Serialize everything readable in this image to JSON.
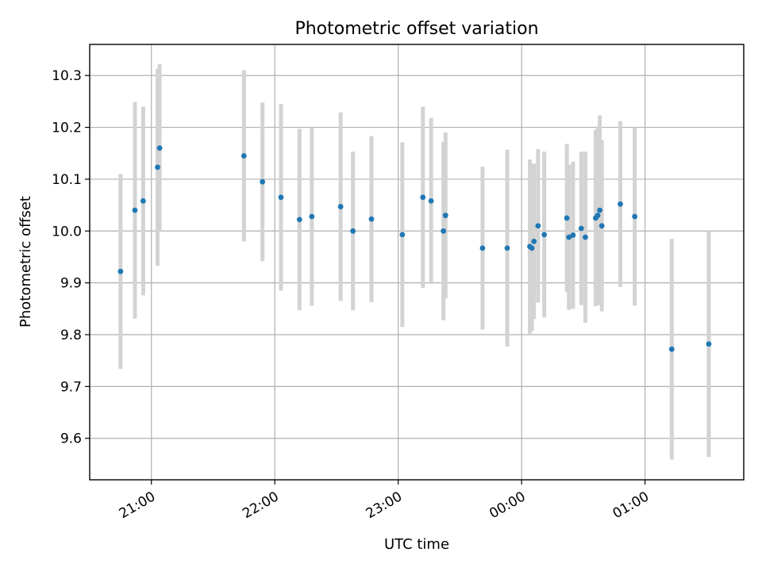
{
  "chart_data": {
    "type": "scatter",
    "title": "Photometric offset variation",
    "xlabel": "UTC time",
    "ylabel": "Photometric offset",
    "x_axis": "time",
    "xlim": [
      "2023-01-01T20:30:00",
      "2023-01-02T01:48:00"
    ],
    "ylim": [
      9.52,
      10.36
    ],
    "grid": true,
    "x_ticks": [
      {
        "t": "2023-01-01T21:00:00",
        "label": "21:00"
      },
      {
        "t": "2023-01-01T22:00:00",
        "label": "22:00"
      },
      {
        "t": "2023-01-01T23:00:00",
        "label": "23:00"
      },
      {
        "t": "2023-01-02T00:00:00",
        "label": "00:00"
      },
      {
        "t": "2023-01-02T01:00:00",
        "label": "01:00"
      }
    ],
    "y_ticks": [
      {
        "v": 9.6,
        "label": "9.6"
      },
      {
        "v": 9.7,
        "label": "9.7"
      },
      {
        "v": 9.8,
        "label": "9.8"
      },
      {
        "v": 9.9,
        "label": "9.9"
      },
      {
        "v": 10.0,
        "label": "10.0"
      },
      {
        "v": 10.1,
        "label": "10.1"
      },
      {
        "v": 10.2,
        "label": "10.2"
      },
      {
        "v": 10.3,
        "label": "10.3"
      }
    ],
    "colors": {
      "point": "#1f77b4",
      "errorbar": "#d3d3d3"
    },
    "points": [
      {
        "t": "2023-01-01T20:45:00",
        "y": 9.922,
        "err": 0.188
      },
      {
        "t": "2023-01-01T20:52:00",
        "y": 10.04,
        "err": 0.209
      },
      {
        "t": "2023-01-01T20:56:00",
        "y": 10.058,
        "err": 0.182
      },
      {
        "t": "2023-01-01T21:03:00",
        "y": 10.123,
        "err": 0.19
      },
      {
        "t": "2023-01-01T21:04:00",
        "y": 10.16,
        "err": 0.162
      },
      {
        "t": "2023-01-01T21:45:00",
        "y": 10.145,
        "err": 0.165
      },
      {
        "t": "2023-01-01T21:54:00",
        "y": 10.095,
        "err": 0.153
      },
      {
        "t": "2023-01-01T22:03:00",
        "y": 10.065,
        "err": 0.18
      },
      {
        "t": "2023-01-01T22:12:00",
        "y": 10.022,
        "err": 0.175
      },
      {
        "t": "2023-01-01T22:18:00",
        "y": 10.028,
        "err": 0.172
      },
      {
        "t": "2023-01-01T22:32:00",
        "y": 10.047,
        "err": 0.182
      },
      {
        "t": "2023-01-01T22:38:00",
        "y": 10.0,
        "err": 0.153
      },
      {
        "t": "2023-01-01T22:47:00",
        "y": 10.023,
        "err": 0.16
      },
      {
        "t": "2023-01-01T23:02:00",
        "y": 9.993,
        "err": 0.178
      },
      {
        "t": "2023-01-01T23:12:00",
        "y": 10.065,
        "err": 0.175
      },
      {
        "t": "2023-01-01T23:16:00",
        "y": 10.058,
        "err": 0.16
      },
      {
        "t": "2023-01-01T23:22:00",
        "y": 10.0,
        "err": 0.172
      },
      {
        "t": "2023-01-01T23:23:00",
        "y": 10.03,
        "err": 0.16
      },
      {
        "t": "2023-01-01T23:41:00",
        "y": 9.967,
        "err": 0.157
      },
      {
        "t": "2023-01-01T23:53:00",
        "y": 9.967,
        "err": 0.19
      },
      {
        "t": "2023-01-02T00:04:00",
        "y": 9.97,
        "err": 0.168
      },
      {
        "t": "2023-01-02T00:05:00",
        "y": 9.967,
        "err": 0.16
      },
      {
        "t": "2023-01-02T00:06:00",
        "y": 9.98,
        "err": 0.15
      },
      {
        "t": "2023-01-02T00:08:00",
        "y": 10.01,
        "err": 0.148
      },
      {
        "t": "2023-01-02T00:11:00",
        "y": 9.993,
        "err": 0.16
      },
      {
        "t": "2023-01-02T00:22:00",
        "y": 10.025,
        "err": 0.143
      },
      {
        "t": "2023-01-02T00:23:00",
        "y": 9.988,
        "err": 0.14
      },
      {
        "t": "2023-01-02T00:25:00",
        "y": 9.992,
        "err": 0.142
      },
      {
        "t": "2023-01-02T00:29:00",
        "y": 10.005,
        "err": 0.148
      },
      {
        "t": "2023-01-02T00:31:00",
        "y": 9.988,
        "err": 0.165
      },
      {
        "t": "2023-01-02T00:36:00",
        "y": 10.025,
        "err": 0.17
      },
      {
        "t": "2023-01-02T00:37:00",
        "y": 10.03,
        "err": 0.172
      },
      {
        "t": "2023-01-02T00:38:00",
        "y": 10.04,
        "err": 0.183
      },
      {
        "t": "2023-01-02T00:39:00",
        "y": 10.01,
        "err": 0.165
      },
      {
        "t": "2023-01-02T00:48:00",
        "y": 10.052,
        "err": 0.16
      },
      {
        "t": "2023-01-02T00:55:00",
        "y": 10.028,
        "err": 0.172
      },
      {
        "t": "2023-01-02T01:13:00",
        "y": 9.772,
        "err": 0.213
      },
      {
        "t": "2023-01-02T01:31:00",
        "y": 9.782,
        "err": 0.218
      }
    ]
  }
}
